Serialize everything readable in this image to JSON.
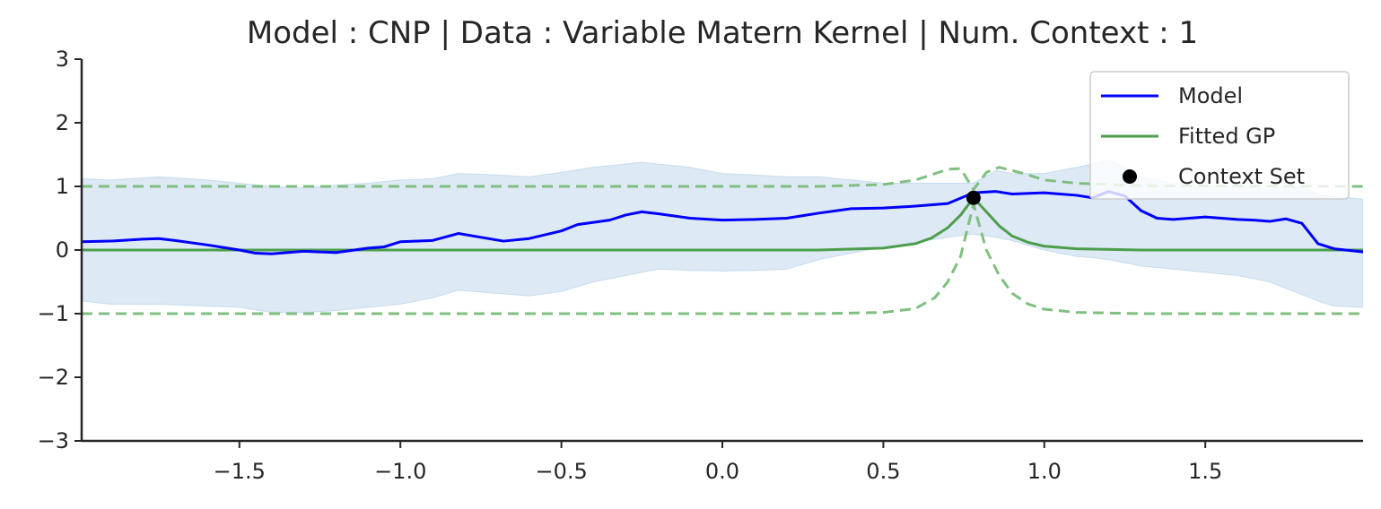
{
  "chart_data": {
    "type": "line",
    "title": "Model : CNP | Data : Variable Matern Kernel | Num. Context : 1",
    "xlabel": "",
    "ylabel": "",
    "xlim": [
      -1.99,
      1.99
    ],
    "ylim": [
      -3,
      3
    ],
    "x_ticks": [
      -1.5,
      -1.0,
      -0.5,
      0.0,
      0.5,
      1.0,
      1.5
    ],
    "x_tick_labels": [
      "−1.5",
      "−1.0",
      "−0.5",
      "0.0",
      "0.5",
      "1.0",
      "1.5"
    ],
    "y_ticks": [
      -3,
      -2,
      -1,
      0,
      1,
      2,
      3
    ],
    "y_tick_labels": [
      "−3",
      "−2",
      "−1",
      "0",
      "1",
      "2",
      "3"
    ],
    "grid": false,
    "legend_position": "top-right",
    "colors": {
      "model": "#0000ff",
      "model_band": "#c6dbef",
      "gp": "#4c9e4c",
      "gp_dashed": "#7fbf7f",
      "context": "#000000",
      "axis": "#262626"
    },
    "series": [
      {
        "name": "Model",
        "x": [
          -1.99,
          -1.9,
          -1.8,
          -1.75,
          -1.7,
          -1.6,
          -1.5,
          -1.45,
          -1.4,
          -1.3,
          -1.2,
          -1.1,
          -1.05,
          -1.0,
          -0.9,
          -0.82,
          -0.75,
          -0.68,
          -0.6,
          -0.5,
          -0.45,
          -0.35,
          -0.3,
          -0.25,
          -0.2,
          -0.1,
          0.0,
          0.1,
          0.2,
          0.3,
          0.4,
          0.5,
          0.6,
          0.7,
          0.78,
          0.85,
          0.9,
          1.0,
          1.1,
          1.15,
          1.2,
          1.25,
          1.3,
          1.35,
          1.4,
          1.5,
          1.6,
          1.65,
          1.7,
          1.75,
          1.8,
          1.85,
          1.9,
          1.99
        ],
        "y": [
          0.13,
          0.14,
          0.17,
          0.18,
          0.15,
          0.08,
          0.0,
          -0.05,
          -0.06,
          -0.02,
          -0.04,
          0.03,
          0.05,
          0.13,
          0.15,
          0.26,
          0.2,
          0.14,
          0.18,
          0.3,
          0.4,
          0.47,
          0.55,
          0.6,
          0.57,
          0.5,
          0.47,
          0.48,
          0.5,
          0.58,
          0.65,
          0.66,
          0.69,
          0.73,
          0.9,
          0.92,
          0.88,
          0.9,
          0.86,
          0.82,
          0.92,
          0.85,
          0.62,
          0.5,
          0.48,
          0.52,
          0.48,
          0.47,
          0.45,
          0.49,
          0.42,
          0.1,
          0.02,
          -0.03
        ]
      },
      {
        "name": "Fitted GP",
        "x": [
          -1.99,
          0.3,
          0.5,
          0.6,
          0.65,
          0.7,
          0.74,
          0.78,
          0.82,
          0.86,
          0.9,
          0.95,
          1.0,
          1.1,
          1.3,
          1.99
        ],
        "y": [
          0.0,
          0.0,
          0.03,
          0.1,
          0.19,
          0.35,
          0.55,
          0.82,
          0.6,
          0.38,
          0.22,
          0.12,
          0.06,
          0.02,
          0.0,
          0.0
        ]
      }
    ],
    "model_band": {
      "x": [
        -1.99,
        -1.9,
        -1.75,
        -1.6,
        -1.5,
        -1.4,
        -1.3,
        -1.2,
        -1.1,
        -1.0,
        -0.9,
        -0.82,
        -0.7,
        -0.6,
        -0.5,
        -0.4,
        -0.3,
        -0.25,
        -0.2,
        -0.1,
        0.0,
        0.1,
        0.2,
        0.3,
        0.4,
        0.5,
        0.6,
        0.7,
        0.78,
        0.85,
        0.9,
        1.0,
        1.1,
        1.15,
        1.2,
        1.25,
        1.3,
        1.4,
        1.5,
        1.6,
        1.7,
        1.75,
        1.8,
        1.85,
        1.9,
        1.99
      ],
      "upper": [
        1.12,
        1.1,
        1.15,
        1.1,
        1.05,
        1.0,
        0.98,
        1.02,
        1.05,
        1.1,
        1.12,
        1.2,
        1.18,
        1.15,
        1.22,
        1.3,
        1.35,
        1.38,
        1.35,
        1.3,
        1.2,
        1.18,
        1.15,
        1.15,
        1.1,
        1.05,
        1.05,
        1.05,
        1.05,
        1.25,
        1.2,
        1.2,
        1.3,
        1.35,
        1.42,
        1.3,
        1.15,
        1.05,
        1.0,
        1.0,
        0.95,
        1.0,
        0.98,
        0.88,
        0.84,
        0.8
      ],
      "lower": [
        -0.8,
        -0.85,
        -0.85,
        -0.88,
        -0.9,
        -0.98,
        -0.98,
        -0.95,
        -0.9,
        -0.85,
        -0.75,
        -0.63,
        -0.68,
        -0.72,
        -0.65,
        -0.5,
        -0.4,
        -0.35,
        -0.3,
        -0.32,
        -0.33,
        -0.32,
        -0.3,
        -0.15,
        -0.05,
        0.05,
        0.12,
        0.2,
        0.25,
        0.2,
        0.15,
        0.0,
        -0.1,
        -0.12,
        -0.15,
        -0.2,
        -0.25,
        -0.3,
        -0.35,
        -0.4,
        -0.5,
        -0.6,
        -0.7,
        -0.8,
        -0.88,
        -0.9
      ]
    },
    "gp_upper": {
      "x": [
        -1.99,
        0.3,
        0.5,
        0.6,
        0.66,
        0.7,
        0.74,
        0.78,
        0.82,
        0.86,
        0.9,
        0.95,
        1.0,
        1.1,
        1.3,
        1.99
      ],
      "y": [
        1.0,
        1.0,
        1.03,
        1.1,
        1.2,
        1.27,
        1.28,
        0.95,
        1.22,
        1.3,
        1.25,
        1.18,
        1.1,
        1.05,
        1.01,
        1.0
      ]
    },
    "gp_lower": {
      "x": [
        -1.99,
        0.3,
        0.5,
        0.6,
        0.66,
        0.7,
        0.74,
        0.78,
        0.82,
        0.86,
        0.9,
        0.95,
        1.0,
        1.1,
        1.3,
        1.99
      ],
      "y": [
        -1.0,
        -1.0,
        -0.98,
        -0.92,
        -0.75,
        -0.5,
        -0.1,
        0.72,
        0.0,
        -0.4,
        -0.68,
        -0.85,
        -0.93,
        -0.98,
        -1.0,
        -1.0
      ]
    },
    "context_points": [
      {
        "x": 0.78,
        "y": 0.82
      }
    ],
    "legend": [
      {
        "label": "Model",
        "kind": "line",
        "color": "#0000ff"
      },
      {
        "label": "Fitted GP",
        "kind": "line",
        "color": "#4c9e4c"
      },
      {
        "label": "Context Set",
        "kind": "marker",
        "color": "#000000"
      }
    ]
  }
}
